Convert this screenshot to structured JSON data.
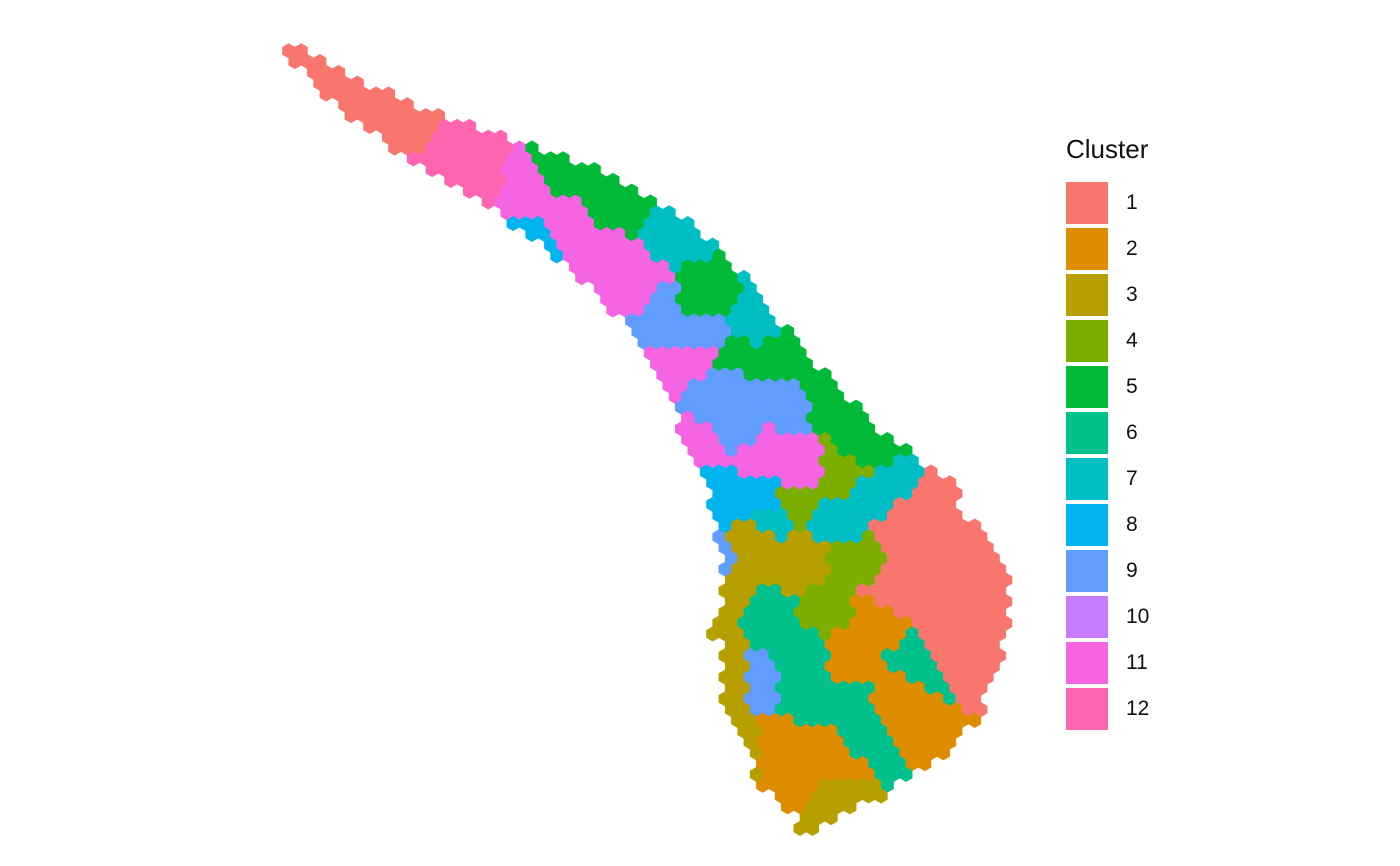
{
  "chart_data": {
    "type": "scatter",
    "description_type": "spatial hexagonal spot map colored by cluster",
    "title": "",
    "xlabel": "",
    "ylabel": "",
    "grid": false,
    "axes": false,
    "legend": {
      "title": "Cluster",
      "placement": "right",
      "entries": [
        {
          "label": "1",
          "color": "#F8766D"
        },
        {
          "label": "2",
          "color": "#DE8C00"
        },
        {
          "label": "3",
          "color": "#B79F00"
        },
        {
          "label": "4",
          "color": "#7CAE00"
        },
        {
          "label": "5",
          "color": "#00BA38"
        },
        {
          "label": "6",
          "color": "#00C08B"
        },
        {
          "label": "7",
          "color": "#00BFC4"
        },
        {
          "label": "8",
          "color": "#00B4F0"
        },
        {
          "label": "9",
          "color": "#619CFF"
        },
        {
          "label": "10",
          "color": "#C77CFF"
        },
        {
          "label": "11",
          "color": "#F564E3"
        },
        {
          "label": "12",
          "color": "#FF64B0"
        }
      ]
    }
  }
}
